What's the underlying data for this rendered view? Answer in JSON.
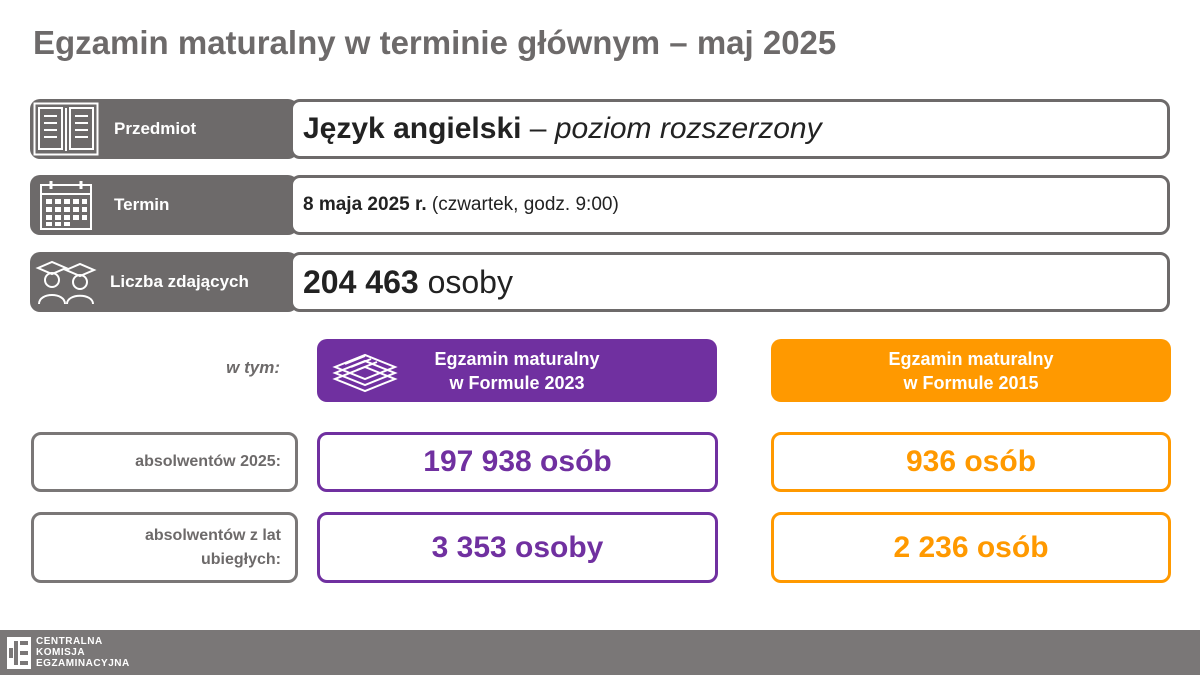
{
  "title": "Egzamin maturalny w terminie głównym – maj 2025",
  "rows": {
    "subject": {
      "label": "Przedmiot",
      "value_bold": "Język angielski",
      "value_sep": " – ",
      "value_italic": "poziom rozszerzony",
      "icon": "book-icon"
    },
    "date": {
      "label": "Termin",
      "value_bold": "8 maja 2025 r.",
      "value_rest": " (czwartek, godz. 9:00)",
      "icon": "calendar-icon"
    },
    "count": {
      "label": "Liczba zdających",
      "value_bold": "204 463",
      "value_rest": " osoby",
      "icon": "graduates-icon"
    }
  },
  "breakdown": {
    "intro": "w tym:",
    "formula2023": {
      "line1": "Egzamin maturalny",
      "line2": "w Formule 2023",
      "color": "#7030a0",
      "icon": "papers-stack-icon"
    },
    "formula2015": {
      "line1": "Egzamin maturalny",
      "line2": "w Formule 2015",
      "color": "#ff9900"
    },
    "rows": [
      {
        "label": "absolwentów 2025:",
        "f2023": "197 938 osób",
        "f2015": "936 osób"
      },
      {
        "label_line1": "absolwentów z lat",
        "label_line2": "ubiegłych:",
        "f2023": "3 353 osoby",
        "f2015": "2 236 osób"
      }
    ]
  },
  "footer": {
    "line1": "CENTRALNA",
    "line2": "KOMISJA",
    "line3": "EGZAMINACYJNA",
    "icon": "cke-logo-icon"
  }
}
